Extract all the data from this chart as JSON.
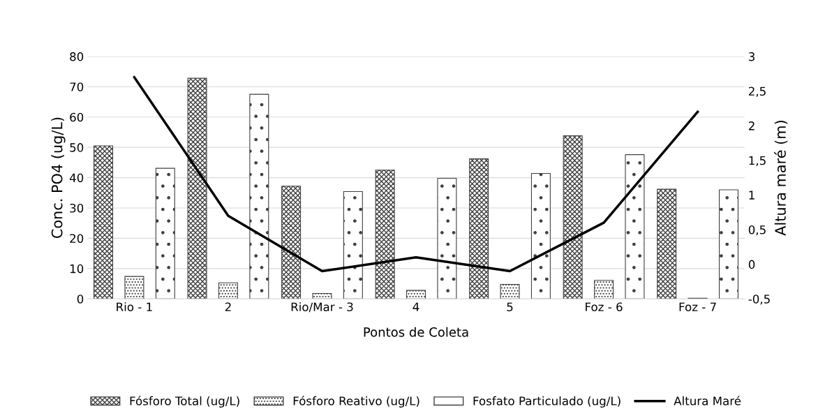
{
  "chart_data": {
    "type": "bar",
    "xlabel": "Pontos de Coleta",
    "ylabel": "Conc. PO4 (ug/L)",
    "y2label": "Altura maré (m)",
    "categories": [
      "Rio - 1",
      "2",
      "Rio/Mar - 3",
      "4",
      "5",
      "Foz - 6",
      "Foz - 7"
    ],
    "series": [
      {
        "name": "Fósforo Total (ug/L)",
        "color": "#404040",
        "values": [
          50.5,
          72.8,
          37.2,
          42.5,
          46.2,
          53.8,
          36.2
        ]
      },
      {
        "name": "Fósforo Reativo (ug/L)",
        "color": "#404040",
        "values": [
          7.4,
          5.3,
          1.8,
          2.8,
          4.8,
          6.1,
          0.2
        ]
      },
      {
        "name": "Fosfato Particulado (ug/L)",
        "color": "#404040",
        "values": [
          43.1,
          67.5,
          35.4,
          39.8,
          41.4,
          47.6,
          36.0
        ]
      },
      {
        "name": "Altura Maré",
        "type": "line",
        "axis": "y2",
        "color": "#000000",
        "values": [
          2.7,
          0.7,
          -0.1,
          0.1,
          -0.1,
          0.6,
          2.2
        ]
      }
    ],
    "ylim": [
      0,
      80
    ],
    "yticks": [
      0,
      10,
      20,
      30,
      40,
      50,
      60,
      70,
      80
    ],
    "y2lim": [
      -0.5,
      3
    ],
    "y2ticks": [
      {
        "value": -0.5,
        "label": "-0,5"
      },
      0,
      {
        "value": 0.5,
        "label": "0,5"
      },
      1,
      {
        "value": 1.5,
        "label": "1,5"
      },
      2,
      {
        "value": 2.5,
        "label": "2,5"
      },
      3
    ],
    "grid": "y",
    "legend": "bottom"
  }
}
